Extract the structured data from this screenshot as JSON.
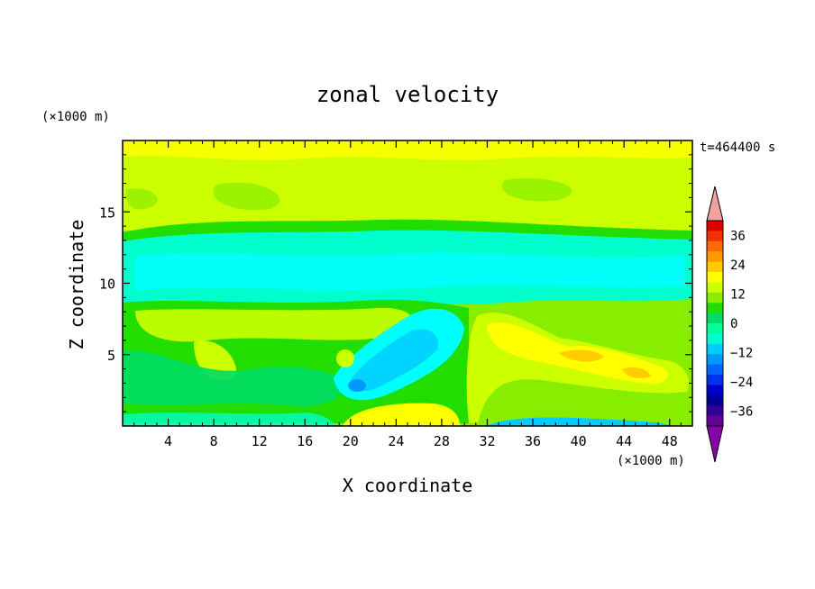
{
  "chart_data": {
    "type": "heatmap",
    "title": "zonal velocity",
    "xlabel": "X coordinate",
    "ylabel": "Z coordinate",
    "x_unit": "(×1000 m)",
    "y_unit": "(×1000 m)",
    "time_label": "t=464400 s",
    "xlim": [
      0,
      50
    ],
    "ylim": [
      0,
      20
    ],
    "x_ticks": [
      4,
      8,
      12,
      16,
      20,
      24,
      28,
      32,
      36,
      40,
      44,
      48
    ],
    "y_ticks": [
      5,
      10,
      15
    ],
    "colorbar": {
      "labels": [
        "36",
        "24",
        "12",
        "0",
        "−12",
        "−24",
        "−36"
      ],
      "label_values": [
        36,
        24,
        12,
        0,
        -12,
        -24,
        -36
      ],
      "range": [
        -42,
        42
      ],
      "step": 6,
      "colors_high_to_low": [
        "#dd0000",
        "#ee3300",
        "#ff6a00",
        "#ff9900",
        "#ffcc00",
        "#ffff00",
        "#ccff00",
        "#88ee00",
        "#22dd00",
        "#00dd66",
        "#00ff99",
        "#00ffcc",
        "#00ccff",
        "#0099ff",
        "#0066ff",
        "#0033ee",
        "#0000cc",
        "#000099",
        "#330099",
        "#660099"
      ],
      "over_color": "#f4a0a0",
      "under_color": "#8800aa"
    },
    "features": [
      {
        "x": [
          0,
          50
        ],
        "z": [
          13.5,
          20
        ],
        "value": 8
      },
      {
        "x": [
          0,
          50
        ],
        "z": [
          9,
          13.5
        ],
        "value": -8
      },
      {
        "x": [
          0,
          30
        ],
        "z": [
          5,
          9
        ],
        "value": 4
      },
      {
        "x": [
          18,
          28
        ],
        "z": [
          2,
          7
        ],
        "value": -10
      },
      {
        "x": [
          30,
          49
        ],
        "z": [
          3,
          8
        ],
        "value": 14
      },
      {
        "x": [
          38,
          42
        ],
        "z": [
          4,
          5
        ],
        "value": 20
      },
      {
        "x": [
          20,
          29
        ],
        "z": [
          0,
          1.5
        ],
        "value": 12
      },
      {
        "x": [
          33,
          44
        ],
        "z": [
          0,
          0.6
        ],
        "value": -14
      },
      {
        "x": [
          19.5,
          21.5
        ],
        "z": [
          2.5,
          3.2
        ],
        "value": -20
      }
    ]
  }
}
